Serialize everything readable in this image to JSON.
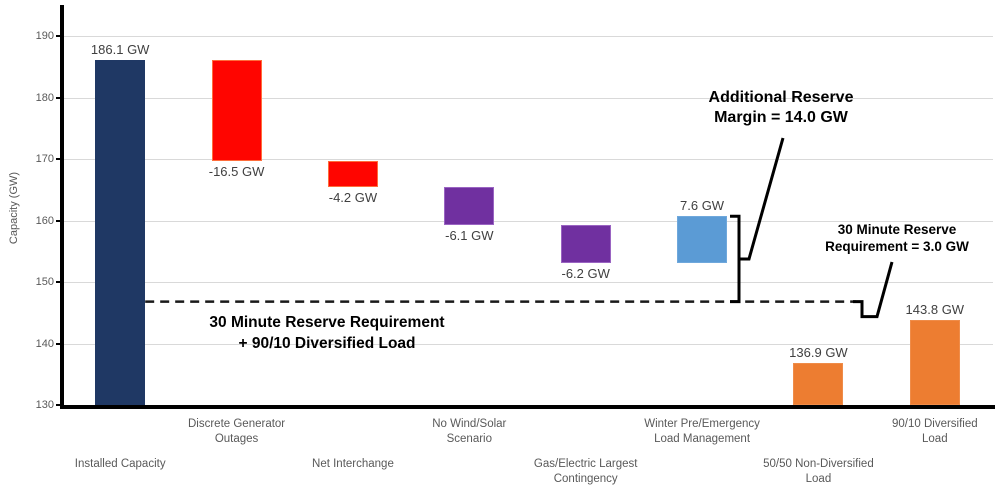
{
  "chart_data": {
    "type": "waterfall",
    "ylabel": "Capacity (GW)",
    "ylim": [
      130,
      190
    ],
    "ytick_step": 10,
    "grid": true,
    "unit": "GW",
    "categories": [
      "Installed Capacity",
      "Discrete Generator Outages",
      "Net Interchange",
      "No Wind/Solar Scenario",
      "Gas/Electric Largest Contingency",
      "Winter Pre/Emergency Load Management",
      "50/50 Non-Diversified Load",
      "90/10 Diversified Load"
    ],
    "bars": [
      {
        "name": "installed-capacity",
        "base": 130.0,
        "top": 186.1,
        "delta": 186.1,
        "label": "186.1 GW",
        "label_pos": "above",
        "color_key": "navy",
        "category_lines": [
          "Installed Capacity"
        ],
        "category_row": "lower"
      },
      {
        "name": "discrete-generator-outages",
        "base": 169.6,
        "top": 186.1,
        "delta": -16.5,
        "label": "-16.5 GW",
        "label_pos": "below",
        "color_key": "red",
        "category_lines": [
          "Discrete Generator",
          "Outages"
        ],
        "category_row": "upper"
      },
      {
        "name": "net-interchange",
        "base": 165.4,
        "top": 169.6,
        "delta": -4.2,
        "label": "-4.2 GW",
        "label_pos": "below",
        "color_key": "red",
        "category_lines": [
          "Net Interchange"
        ],
        "category_row": "lower"
      },
      {
        "name": "no-wind-solar-scenario",
        "base": 159.3,
        "top": 165.4,
        "delta": -6.1,
        "label": "-6.1 GW",
        "label_pos": "below",
        "color_key": "purple",
        "category_lines": [
          "No Wind/Solar",
          "Scenario"
        ],
        "category_row": "upper"
      },
      {
        "name": "gas-electric-largest-contingency",
        "base": 153.1,
        "top": 159.3,
        "delta": -6.2,
        "label": "-6.2 GW",
        "label_pos": "below",
        "color_key": "purple",
        "category_lines": [
          "Gas/Electric Largest",
          "Contingency"
        ],
        "category_row": "lower"
      },
      {
        "name": "winter-pre-emergency-load-management",
        "base": 153.1,
        "top": 160.7,
        "delta": 7.6,
        "label": "7.6 GW",
        "label_pos": "above",
        "color_key": "blue",
        "category_lines": [
          "Winter Pre/Emergency",
          "Load Management"
        ],
        "category_row": "upper"
      },
      {
        "name": "50-50-non-diversified-load",
        "base": 130.0,
        "top": 136.9,
        "delta": 136.9,
        "label": "136.9 GW",
        "label_pos": "above",
        "color_key": "orange",
        "category_lines": [
          "50/50 Non-Diversified",
          "Load"
        ],
        "category_row": "lower"
      },
      {
        "name": "90-10-diversified-load",
        "base": 130.0,
        "top": 143.8,
        "delta": 143.8,
        "label": "143.8 GW",
        "label_pos": "above",
        "color_key": "orange",
        "category_lines": [
          "90/10 Diversified",
          "Load"
        ],
        "category_row": "upper"
      }
    ],
    "dashed_reference_line": {
      "value": 146.8
    },
    "reserve_margin_bracket": {
      "from_value": 160.7,
      "to_value": 146.8
    },
    "annotations": {
      "additional_reserve": {
        "line1": "Additional Reserve",
        "line2": "Margin = 14.0 GW"
      },
      "reserve_requirement": {
        "line1": "30 Minute Reserve",
        "line2": "Requirement = 3.0 GW"
      },
      "reserve_plus_load": {
        "line1": "30 Minute Reserve Requirement",
        "line2": "+ 90/10 Diversified Load"
      }
    }
  },
  "colors": {
    "navy": "#1f3864",
    "red": "#ff0500",
    "red_border": "#ff6d3b",
    "purple": "#7030a0",
    "purple_border": "#9a64c2",
    "blue": "#5b9bd5",
    "blue_border": "#6fa8dc",
    "orange": "#ed7d31",
    "orange_border": "#ef8c49",
    "grid": "#d9d9d9",
    "axis": "#000000",
    "tick_text": "#595959",
    "bar_label_text": "#404040",
    "category_text": "#595959",
    "annotation_text": "#000000",
    "dashed_line": "#1a1a1a"
  }
}
